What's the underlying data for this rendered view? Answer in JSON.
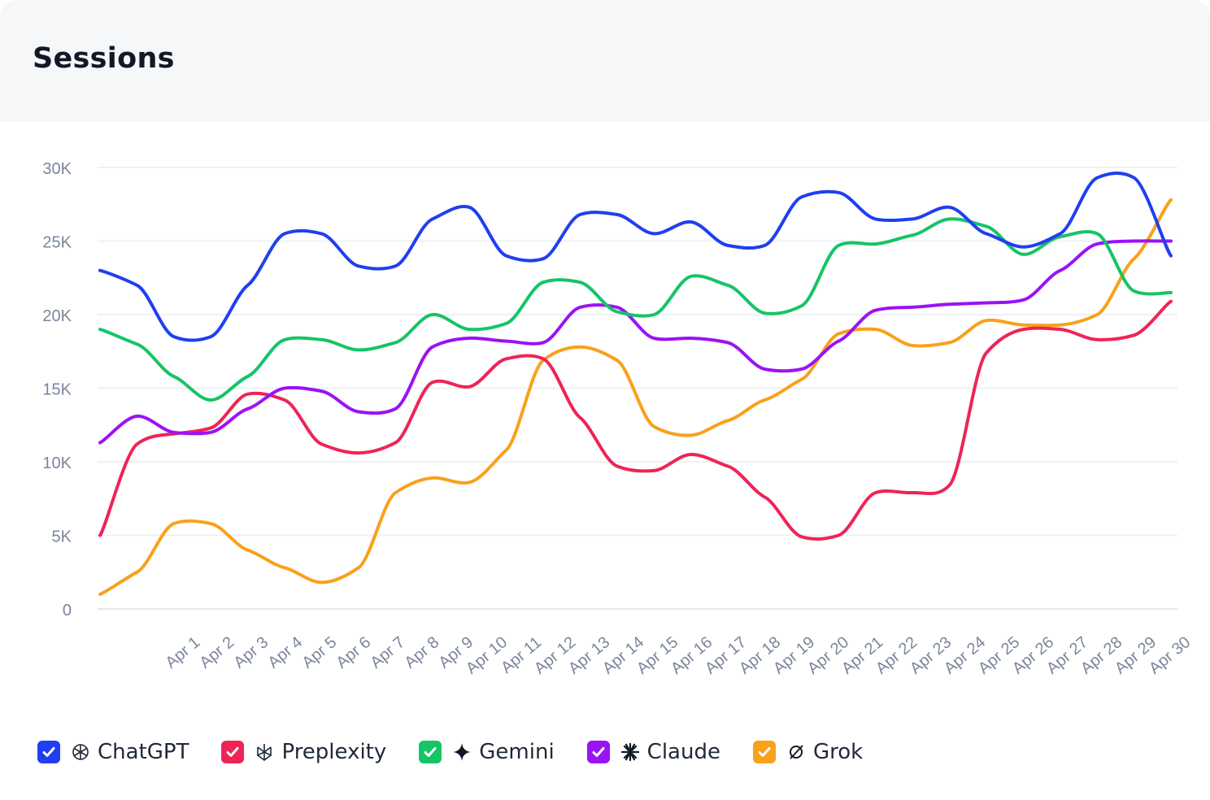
{
  "card": {
    "title": "Sessions"
  },
  "legend": [
    {
      "label": "ChatGPT",
      "icon": "openai-icon",
      "color": "#1f3ff0"
    },
    {
      "label": "Preplexity",
      "icon": "perplexity-icon",
      "color": "#ee2457"
    },
    {
      "label": "Gemini",
      "icon": "gemini-sparkle-icon",
      "color": "#16c466"
    },
    {
      "label": "Claude",
      "icon": "claude-asterisk-icon",
      "color": "#9b12f5"
    },
    {
      "label": "Grok",
      "icon": "grok-slash-icon",
      "color": "#f9a11b"
    }
  ],
  "chart_data": {
    "type": "line",
    "ylim": [
      0,
      30000
    ],
    "yticks": [
      0,
      5000,
      10000,
      15000,
      20000,
      25000,
      30000
    ],
    "ytick_labels": [
      "0",
      "5K",
      "10K",
      "15K",
      "20K",
      "25K",
      "30K"
    ],
    "grid": true,
    "legend_position": "bottom-left",
    "categories": [
      "Apr 1",
      "Apr 2",
      "Apr 3",
      "Apr 4",
      "Apr 5",
      "Apr 6",
      "Apr 7",
      "Apr 8",
      "Apr 9",
      "Apr 10",
      "Apr 11",
      "Apr 12",
      "Apr 13",
      "Apr 14",
      "Apr 15",
      "Apr 16",
      "Apr 17",
      "Apr 18",
      "Apr 19",
      "Apr 20",
      "Apr 21",
      "Apr 22",
      "Apr 23",
      "Apr 24",
      "Apr 25",
      "Apr 26",
      "Apr 27",
      "Apr 28",
      "Apr 29",
      "Apr 30"
    ],
    "x_points": [
      "",
      "Apr 1",
      "Apr 2",
      "Apr 3",
      "Apr 4",
      "Apr 5",
      "Apr 6",
      "Apr 7",
      "Apr 8",
      "Apr 9",
      "Apr 10",
      "Apr 11",
      "Apr 12",
      "Apr 13",
      "Apr 14",
      "Apr 15",
      "Apr 16",
      "Apr 17",
      "Apr 18",
      "Apr 19",
      "Apr 20",
      "Apr 21",
      "Apr 22",
      "Apr 23",
      "Apr 24",
      "Apr 25",
      "Apr 26",
      "Apr 27",
      "Apr 28",
      "Apr 29",
      "Apr 30",
      ""
    ],
    "series": [
      {
        "name": "ChatGPT",
        "color": "#1f3ff0",
        "values": [
          23000,
          22000,
          18500,
          18500,
          22000,
          25500,
          25500,
          23300,
          23300,
          26500,
          27300,
          24000,
          23800,
          26800,
          26800,
          25500,
          26300,
          24700,
          24700,
          28000,
          28300,
          26500,
          26500,
          27300,
          25500,
          24600,
          25500,
          29300,
          29300,
          24000
        ]
      },
      {
        "name": "Preplexity",
        "color": "#ee2457",
        "values": [
          5000,
          11200,
          11900,
          12300,
          14600,
          14200,
          11200,
          10600,
          11300,
          15400,
          15100,
          17000,
          17000,
          13000,
          9700,
          9400,
          10500,
          9700,
          7600,
          4900,
          5000,
          7900,
          7900,
          8400,
          17400,
          19000,
          19000,
          18300,
          18600,
          20900
        ]
      },
      {
        "name": "Gemini",
        "color": "#16c466",
        "values": [
          19000,
          18000,
          15800,
          14200,
          15800,
          18300,
          18300,
          17600,
          18100,
          20000,
          19000,
          19400,
          22200,
          22200,
          20200,
          20000,
          22600,
          22000,
          20100,
          20600,
          24700,
          24800,
          25400,
          26500,
          26000,
          24100,
          25300,
          25500,
          21600,
          21500
        ]
      },
      {
        "name": "Claude",
        "color": "#9b12f5",
        "values": [
          11300,
          13100,
          12000,
          12000,
          13600,
          15000,
          14800,
          13400,
          13600,
          17800,
          18400,
          18200,
          18100,
          20500,
          20500,
          18400,
          18400,
          18100,
          16300,
          16300,
          18200,
          20300,
          20500,
          20700,
          20800,
          21000,
          23000,
          24800,
          25000,
          25000
        ]
      },
      {
        "name": "Grok",
        "color": "#f9a11b",
        "values": [
          1000,
          2500,
          5800,
          5800,
          4000,
          2800,
          1800,
          2800,
          7900,
          8900,
          8600,
          10800,
          16900,
          17800,
          16900,
          12400,
          11800,
          12800,
          14200,
          15600,
          18700,
          19000,
          17900,
          18100,
          19600,
          19300,
          19300,
          20000,
          23800,
          27800
        ]
      }
    ]
  }
}
